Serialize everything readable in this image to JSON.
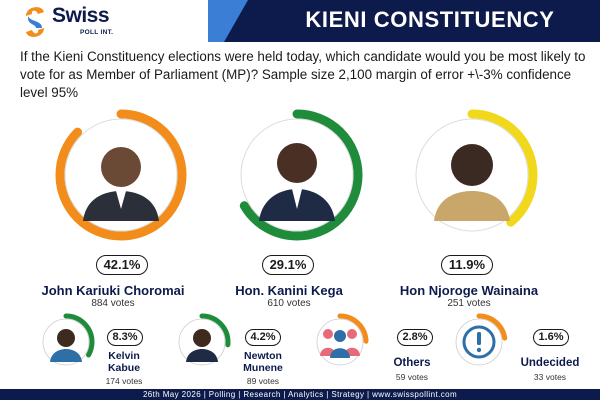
{
  "brand": {
    "name": "Swiss",
    "sub": "POLL INT.",
    "colors": {
      "navy": "#0d1b4c",
      "orange": "#f28c1b",
      "green": "#1e8c3a",
      "yellow": "#f2d81b",
      "light_blue": "#3a7fd5"
    }
  },
  "header": {
    "title": "KIENI CONSTITUENCY"
  },
  "question": "If the Kieni Constituency elections were held today, which candidate would you be most likely to vote for as Member of Parliament (MP)? Sample size 2,100 margin of error +\\-3% confidence level 95%",
  "chart_data": {
    "type": "bar",
    "categories": [
      "John Kariuki Choromai",
      "Hon. Kanini Kega",
      "Hon Njoroge Wainaina",
      "Kelvin Kabue",
      "Newton Munene",
      "Others",
      "Undecided"
    ],
    "values": [
      42.1,
      29.1,
      11.9,
      8.3,
      4.2,
      2.8,
      1.6
    ],
    "series": [
      {
        "values": [
          42.1,
          29.1,
          11.9,
          8.3,
          4.2,
          2.8,
          1.6
        ]
      }
    ],
    "ylim": [
      0,
      100
    ]
  },
  "candidates_big": [
    {
      "name": "John Kariuki Choromai",
      "pct": "42.1%",
      "value": 42.1,
      "votes": "884 votes",
      "ring": "orange",
      "icon": "candidate-portrait-icon"
    },
    {
      "name": "Hon. Kanini Kega",
      "pct": "29.1%",
      "value": 29.1,
      "votes": "610 votes",
      "ring": "green",
      "icon": "candidate-portrait-icon"
    },
    {
      "name": "Hon Njoroge Wainaina",
      "pct": "11.9%",
      "value": 11.9,
      "votes": "251 votes",
      "ring": "yellow",
      "icon": "candidate-portrait-icon"
    }
  ],
  "candidates_small": [
    {
      "name_line1": "Kelvin",
      "name_line2": "Kabue",
      "pct": "8.3%",
      "value": 8.3,
      "votes": "174 votes",
      "ring": "green",
      "icon": "candidate-portrait-icon"
    },
    {
      "name_line1": "Newton",
      "name_line2": "Munene",
      "pct": "4.2%",
      "value": 4.2,
      "votes": "89 votes",
      "ring": "green",
      "icon": "candidate-portrait-icon"
    },
    {
      "name_line1": "Others",
      "name_line2": "",
      "pct": "2.8%",
      "value": 2.8,
      "votes": "59 votes",
      "ring": "orange",
      "icon": "group-people-icon"
    },
    {
      "name_line1": "Undecided",
      "name_line2": "",
      "pct": "1.6%",
      "value": 1.6,
      "votes": "33 votes",
      "ring": "orange",
      "icon": "exclamation-icon"
    }
  ],
  "footer": {
    "text": "26th May 2026 | Polling | Research | Analytics | Strategy | www.swisspollint.com"
  }
}
